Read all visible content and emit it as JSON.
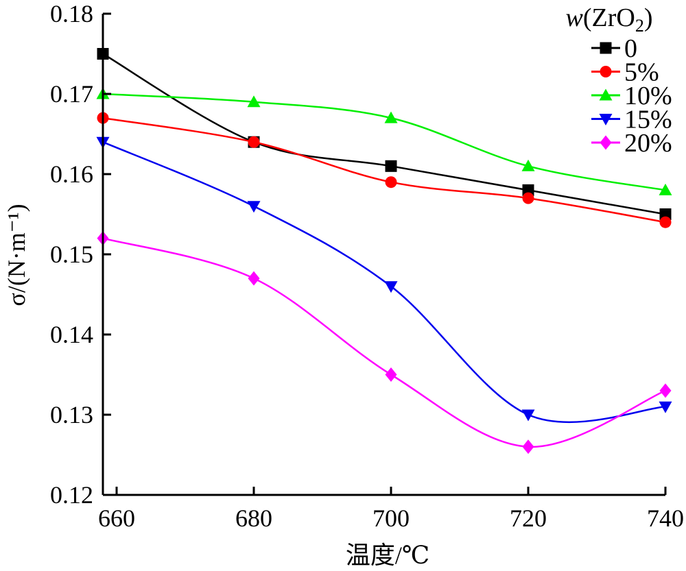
{
  "chart_data": {
    "type": "line",
    "xlabel": "温度/℃",
    "ylabel": "σ/(N·m⁻¹)",
    "xlim": [
      658,
      740
    ],
    "ylim": [
      0.12,
      0.18
    ],
    "xticks": [
      660,
      680,
      700,
      720,
      740
    ],
    "yticks": [
      0.12,
      0.13,
      0.14,
      0.15,
      0.16,
      0.17,
      0.18
    ],
    "x": [
      658,
      680,
      700,
      720,
      740
    ],
    "grid": false,
    "legend_position": "top-right",
    "legend_title": "w(ZrO2)",
    "series": [
      {
        "name": "0",
        "values": [
          0.175,
          0.164,
          0.161,
          0.158,
          0.155
        ],
        "color": "#000000",
        "marker": "square"
      },
      {
        "name": "5%",
        "values": [
          0.167,
          0.164,
          0.159,
          0.157,
          0.154
        ],
        "color": "#ff0000",
        "marker": "circle"
      },
      {
        "name": "10%",
        "values": [
          0.17,
          0.169,
          0.167,
          0.161,
          0.158
        ],
        "color": "#00ee00",
        "marker": "triangle-up"
      },
      {
        "name": "15%",
        "values": [
          0.164,
          0.156,
          0.146,
          0.13,
          0.131
        ],
        "color": "#0000ee",
        "marker": "triangle-down"
      },
      {
        "name": "20%",
        "values": [
          0.152,
          0.147,
          0.135,
          0.126,
          0.133
        ],
        "color": "#ff00ff",
        "marker": "diamond"
      }
    ]
  }
}
